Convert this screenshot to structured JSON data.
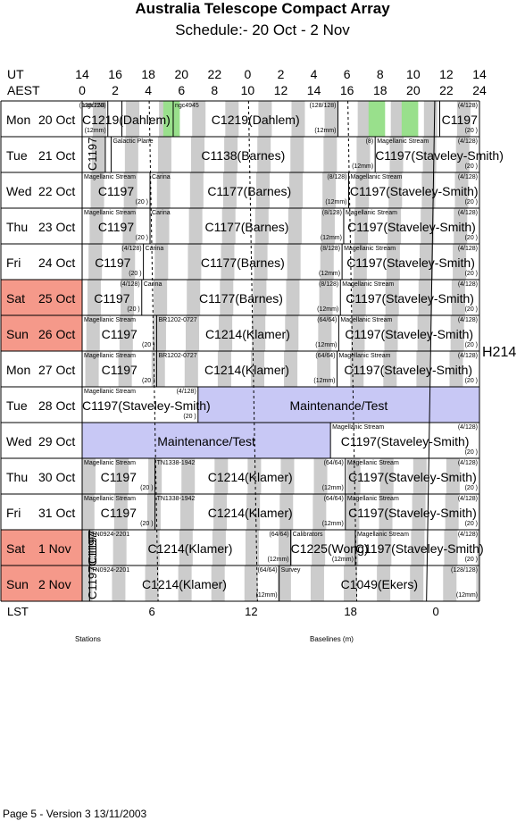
{
  "title": "Australia Telescope Compact Array",
  "subtitle": "Schedule:- 20 Oct - 2  Nov",
  "ut_label": "UT",
  "aest_label": "AEST",
  "ut_ticks": [
    "14",
    "16",
    "18",
    "20",
    "22",
    "0",
    "2",
    "4",
    "6",
    "8",
    "10",
    "12",
    "14"
  ],
  "aest_ticks": [
    "0",
    "2",
    "4",
    "6",
    "8",
    "10",
    "12",
    "14",
    "16",
    "18",
    "20",
    "22",
    "24"
  ],
  "lst_label": "LST",
  "lst_ticks": [
    "6",
    "12",
    "18",
    "0"
  ],
  "config": "H214",
  "footer": "Page 5 - Version 3  13/11/2003",
  "stations_label": "Stations",
  "baselines_label": "Baselines (m)",
  "days": [
    {
      "weekday": "Mon",
      "date": "20 Oct",
      "weekend": false
    },
    {
      "weekday": "Tue",
      "date": "21 Oct",
      "weekend": false
    },
    {
      "weekday": "Wed",
      "date": "22 Oct",
      "weekend": false
    },
    {
      "weekday": "Thu",
      "date": "23 Oct",
      "weekend": false
    },
    {
      "weekday": "Fri",
      "date": "24 Oct",
      "weekend": false
    },
    {
      "weekday": "Sat",
      "date": "25 Oct",
      "weekend": true
    },
    {
      "weekday": "Sun",
      "date": "26 Oct",
      "weekend": true
    },
    {
      "weekday": "Mon",
      "date": "27 Oct",
      "weekend": false
    },
    {
      "weekday": "Tue",
      "date": "28 Oct",
      "weekend": false
    },
    {
      "weekday": "Wed",
      "date": "29 Oct",
      "weekend": false
    },
    {
      "weekday": "Thu",
      "date": "30 Oct",
      "weekend": false
    },
    {
      "weekday": "Fri",
      "date": "31 Oct",
      "weekend": false
    },
    {
      "weekday": "Sat",
      "date": "1  Nov",
      "weekend": true
    },
    {
      "weekday": "Sun",
      "date": "2  Nov",
      "weekend": true
    }
  ],
  "blocks": [
    {
      "row": 0,
      "start": 0,
      "end": 1.55,
      "main": "C1219(Dahlem)",
      "tl": "ngc253",
      "tr": "(128/128)",
      "br": "(12mm)"
    },
    {
      "row": 0,
      "start": 1.55,
      "end": 2.4,
      "main": "",
      "tl": "",
      "tr": "",
      "br": ""
    },
    {
      "row": 0,
      "start": 2.4,
      "end": 5.5,
      "main": "",
      "tl": "",
      "tr": "",
      "br": ""
    },
    {
      "row": 0,
      "start": 5.5,
      "end": 15.45,
      "main": "C1219(Dahlem)",
      "tl": "ngc4945",
      "tr": "(128/128)",
      "br": "(12mm)"
    },
    {
      "row": 0,
      "start": 15.45,
      "end": 21.6,
      "main": "",
      "tl": "",
      "tr": "",
      "br": ""
    },
    {
      "row": 0,
      "start": 21.6,
      "end": 24,
      "main": "C1197",
      "tl": "",
      "tr": "(4/128)",
      "br": "(20 )"
    },
    {
      "row": 1,
      "start": 0,
      "end": 1.4,
      "main": "",
      "tl": "",
      "tr": "",
      "br": ""
    },
    {
      "row": 1,
      "start": 1.4,
      "end": 1.75,
      "main": "",
      "tl": "",
      "tr": "",
      "br": ""
    },
    {
      "row": 1,
      "start": 1.75,
      "end": 17.7,
      "main": "C1138(Barnes)",
      "tl": "Galactic Plane",
      "tr": "(8)",
      "br": "(12mm)"
    },
    {
      "row": 1,
      "start": 17.7,
      "end": 24,
      "main": "C1197(Staveley-Smith)",
      "tl": "Magellanic Stream",
      "tr": "(4/128)",
      "br": "(20 )"
    },
    {
      "row": 2,
      "start": 0,
      "end": 4.1,
      "main": "C1197",
      "tl": "Magellanic Stream",
      "tr": "",
      "br": "(20 )"
    },
    {
      "row": 2,
      "start": 4.1,
      "end": 16.1,
      "main": "C1177(Barnes)",
      "tl": "Carina",
      "tr": "(8/128)",
      "br": "(12mm)"
    },
    {
      "row": 2,
      "start": 16.1,
      "end": 24,
      "main": "C1197(Staveley-Smith)",
      "tl": "Magellanic Stream",
      "tr": "(4/128)",
      "br": "(20 )"
    },
    {
      "row": 3,
      "start": 0,
      "end": 4.1,
      "main": "C1197",
      "tl": "Magellanic Stream",
      "tr": "",
      "br": "(20 )"
    },
    {
      "row": 3,
      "start": 4.1,
      "end": 15.8,
      "main": "C1177(Barnes)",
      "tl": "Carina",
      "tr": "(8/128)",
      "br": "(12mm)"
    },
    {
      "row": 3,
      "start": 15.8,
      "end": 24,
      "main": "C1197(Staveley-Smith)",
      "tl": "Magellanic Stream",
      "tr": "(4/128)",
      "br": "(20 )"
    },
    {
      "row": 4,
      "start": 0,
      "end": 3.7,
      "main": "C1197",
      "tl": "",
      "tr": "(4/128)",
      "br": "(20 )"
    },
    {
      "row": 4,
      "start": 3.7,
      "end": 15.7,
      "main": "C1177(Barnes)",
      "tl": "Carina",
      "tr": "(8/128)",
      "br": "(12mm)"
    },
    {
      "row": 4,
      "start": 15.7,
      "end": 24,
      "main": "C1197(Staveley-Smith)",
      "tl": "Magellanic Stream",
      "tr": "(4/128)",
      "br": "(20 )"
    },
    {
      "row": 5,
      "start": 0,
      "end": 3.6,
      "main": "C1197",
      "tl": "",
      "tr": "(4/128)",
      "br": "(20 )"
    },
    {
      "row": 5,
      "start": 3.6,
      "end": 15.6,
      "main": "C1177(Barnes)",
      "tl": "Carina",
      "tr": "(8/128)",
      "br": "(12mm)"
    },
    {
      "row": 5,
      "start": 15.6,
      "end": 24,
      "main": "C1197(Staveley-Smith)",
      "tl": "Magellanic Stream",
      "tr": "(4/128)",
      "br": "(20 )"
    },
    {
      "row": 6,
      "start": 0,
      "end": 4.5,
      "main": "C1197",
      "tl": "Magellanic Stream",
      "tr": "",
      "br": "(20 )"
    },
    {
      "row": 6,
      "start": 4.5,
      "end": 15.5,
      "main": "C1214(Klamer)",
      "tl": "BR1202-0727",
      "tr": "(64/64)",
      "br": "(12mm)"
    },
    {
      "row": 6,
      "start": 15.5,
      "end": 24,
      "main": "C1197(Staveley-Smith)",
      "tl": "Magellanic Stream",
      "tr": "(4/128)",
      "br": "(20 )"
    },
    {
      "row": 7,
      "start": 0,
      "end": 4.5,
      "main": "C1197",
      "tl": "Magellanic Stream",
      "tr": "",
      "br": "(20 )"
    },
    {
      "row": 7,
      "start": 4.5,
      "end": 15.4,
      "main": "C1214(Klamer)",
      "tl": "BR1202-0727",
      "tr": "(64/64)",
      "br": "(12mm)"
    },
    {
      "row": 7,
      "start": 15.4,
      "end": 24,
      "main": "C1197(Staveley-Smith)",
      "tl": "Magellanic Stream",
      "tr": "(4/128)",
      "br": "(20 )"
    },
    {
      "row": 8,
      "start": 0,
      "end": 7.0,
      "main": "C1197(Staveley-Smith)",
      "tl": "Magellanic Stream",
      "tr": "(4/128)",
      "br": "(20 )"
    },
    {
      "row": 8,
      "start": 7.0,
      "end": 24,
      "main": "Maintenance/Test",
      "tl": "",
      "tr": "",
      "br": "",
      "maint": true
    },
    {
      "row": 9,
      "start": 0,
      "end": 15.0,
      "main": "Maintenance/Test",
      "tl": "",
      "tr": "",
      "br": "",
      "maint": true
    },
    {
      "row": 9,
      "start": 15.0,
      "end": 24,
      "main": "C1197(Staveley-Smith)",
      "tl": "Magellanic Stream",
      "tr": "(4/128)",
      "br": "(20 )"
    },
    {
      "row": 10,
      "start": 0,
      "end": 4.4,
      "main": "C1197",
      "tl": "Magellanic Stream",
      "tr": "",
      "br": "(20 )"
    },
    {
      "row": 10,
      "start": 4.4,
      "end": 15.9,
      "main": "C1214(Klamer)",
      "tl": "TN1338-1942",
      "tr": "(64/64)",
      "br": "(12mm)"
    },
    {
      "row": 10,
      "start": 15.9,
      "end": 24,
      "main": "C1197(Staveley-Smith)",
      "tl": "Magellanic Stream",
      "tr": "(4/128)",
      "br": "(20 )"
    },
    {
      "row": 11,
      "start": 0,
      "end": 4.4,
      "main": "C1197",
      "tl": "Magellanic Stream",
      "tr": "",
      "br": "(20 )"
    },
    {
      "row": 11,
      "start": 4.4,
      "end": 15.9,
      "main": "C1214(Klamer)",
      "tl": "TN1338-1942",
      "tr": "(64/64)",
      "br": "(12mm)"
    },
    {
      "row": 11,
      "start": 15.9,
      "end": 24,
      "main": "C1197(Staveley-Smith)",
      "tl": "Magellanic Stream",
      "tr": "(4/128)",
      "br": "(20 )"
    },
    {
      "row": 12,
      "start": 0,
      "end": 0.45,
      "main": "",
      "tl": "",
      "tr": "",
      "br": ""
    },
    {
      "row": 12,
      "start": 0.45,
      "end": 12.6,
      "main": "C1214(Klamer)",
      "tl": "TN0924-2201",
      "tr": "(64/64)",
      "br": "(12mm)"
    },
    {
      "row": 12,
      "start": 12.6,
      "end": 16.5,
      "main": "C1225(Wong)",
      "tl": "Calibrators",
      "tr": "",
      "br": "(12mm)"
    },
    {
      "row": 12,
      "start": 16.5,
      "end": 24,
      "main": "C1197(Staveley-Smith)",
      "tl": "Magellanic Stream",
      "tr": "(4/128)",
      "br": "(20 )"
    },
    {
      "row": 13,
      "start": 0,
      "end": 0.45,
      "main": "",
      "tl": "",
      "tr": "",
      "br": ""
    },
    {
      "row": 13,
      "start": 0.45,
      "end": 11.9,
      "main": "C1214(Klamer)",
      "tl": "TN0924-2201",
      "tr": "(64/64)",
      "br": "(12mm)"
    },
    {
      "row": 13,
      "start": 11.9,
      "end": 24,
      "main": "C1049(Ekers)",
      "tl": "Survey",
      "tr": "(128/128)",
      "br": "(12mm)"
    }
  ],
  "vertical_labels": [
    {
      "row": 1,
      "text": "C1197"
    },
    {
      "row": 12,
      "text": "C1197"
    },
    {
      "row": 13,
      "text": "C1197C1197"
    }
  ],
  "green_cells": [
    {
      "row": 0,
      "start": 4.9,
      "end": 5.9
    },
    {
      "row": 0,
      "start": 17.3,
      "end": 18.3
    },
    {
      "row": 0,
      "start": 19.3,
      "end": 20.3
    }
  ],
  "colors": {
    "weekend": "#f5998a",
    "maintenance": "#c8c8f5",
    "lst_stripe": "#cccccc",
    "green": "#99e08c"
  }
}
